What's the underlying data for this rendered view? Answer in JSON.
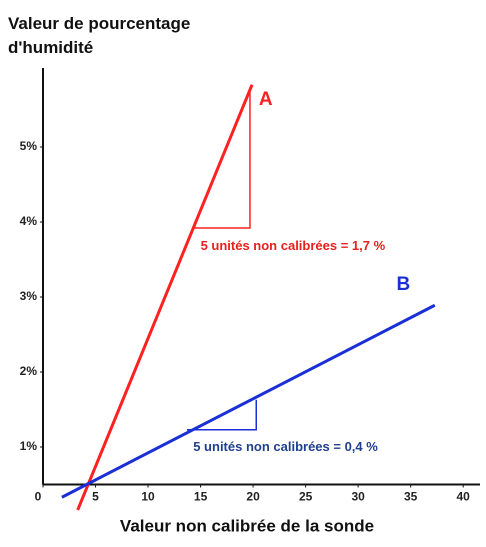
{
  "chart_data": {
    "type": "line",
    "y_axis_label": "Valeur de pourcentage d'humidité",
    "x_axis_label": "Valeur non calibrée de la sonde",
    "xlim": [
      0,
      41.6
    ],
    "ylim": [
      0.5,
      6.0
    ],
    "xticks": [
      0,
      5,
      10,
      15,
      20,
      25,
      30,
      35,
      40
    ],
    "yticks": [
      {
        "value": 1,
        "label": "1%"
      },
      {
        "value": 2,
        "label": "2%"
      },
      {
        "value": 3,
        "label": "3%"
      },
      {
        "value": 4,
        "label": "4%"
      },
      {
        "value": 5,
        "label": "5%"
      }
    ],
    "series": [
      {
        "name": "A",
        "color": "#ff2020",
        "x": [
          3.3,
          19.9
        ],
        "values": [
          0.16,
          5.83
        ],
        "label_pos": [
          21.2,
          5.63
        ],
        "triangle": {
          "x": [
            14.3,
            19.7
          ],
          "y": [
            3.92,
            5.79
          ]
        }
      },
      {
        "name": "B",
        "color": "#1a2fd6",
        "x": [
          1.8,
          37.3
        ],
        "values": [
          0.33,
          2.89
        ],
        "label_pos": [
          34.3,
          3.16
        ],
        "triangle": {
          "x": [
            13.7,
            20.3
          ],
          "y": [
            1.23,
            1.63
          ]
        }
      }
    ],
    "annotations": [
      {
        "text": "5 unités non calibrées = 1,7 %",
        "x": 15.0,
        "y": 3.67,
        "color": "#e8201c"
      },
      {
        "text": "5 unités non calibrées = 0,4 %",
        "x": 14.3,
        "y": 0.99,
        "color": "#1f3f8f"
      }
    ]
  }
}
